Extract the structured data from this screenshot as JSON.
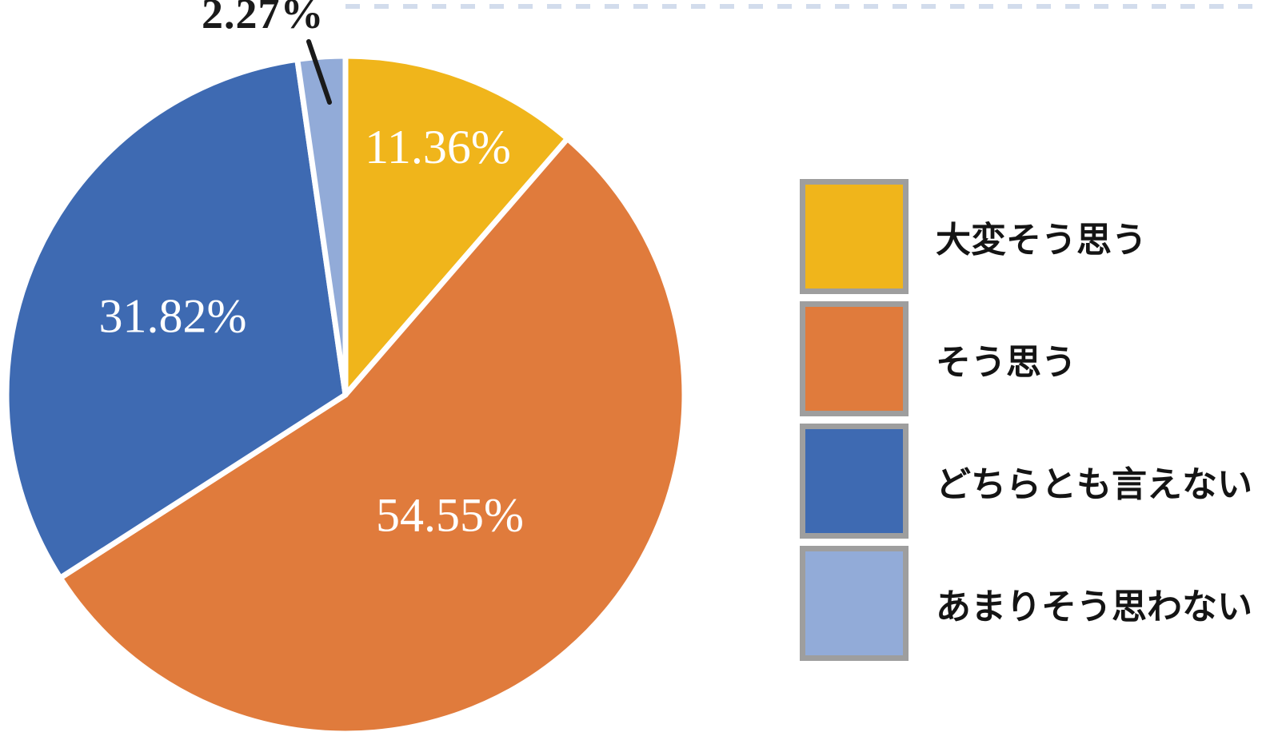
{
  "chart_data": {
    "type": "pie",
    "title": "",
    "unit": "%",
    "direction": "clockwise",
    "start_angle_deg": 0,
    "legend_position": "right",
    "slices": [
      {
        "label": "大変そう思う",
        "value": 11.36,
        "display": "11.36%",
        "color": "#F0B51B",
        "label_style": "inside-white"
      },
      {
        "label": "そう思う",
        "value": 54.55,
        "display": "54.55%",
        "color": "#E07B3C",
        "label_style": "inside-white"
      },
      {
        "label": "どちらとも言えない",
        "value": 31.82,
        "display": "31.82%",
        "color": "#3E6AB2",
        "label_style": "inside-white"
      },
      {
        "label": "あまりそう思わない",
        "value": 2.27,
        "display": "2.27%",
        "color": "#92ABD8",
        "label_style": "outside-callout-black"
      }
    ],
    "callout": {
      "slice_label": "あまりそう思わない",
      "text": "2.27%",
      "color": "#1A1A1A"
    },
    "legend": {
      "swatch_border_color": "#9E9E9E",
      "text_color": "#141414",
      "items": [
        {
          "label": "大変そう思う",
          "color": "#F0B51B"
        },
        {
          "label": "そう思う",
          "color": "#E07B3C"
        },
        {
          "label": "どちらとも言えない",
          "color": "#3E6AB2"
        },
        {
          "label": "あまりそう思わない",
          "color": "#92ABD8"
        }
      ]
    },
    "slice_separator_color": "#FFFFFF",
    "inside_label_color": "#FFFFFF"
  },
  "decor": {
    "top_dash_color": "#AEBFDD"
  }
}
